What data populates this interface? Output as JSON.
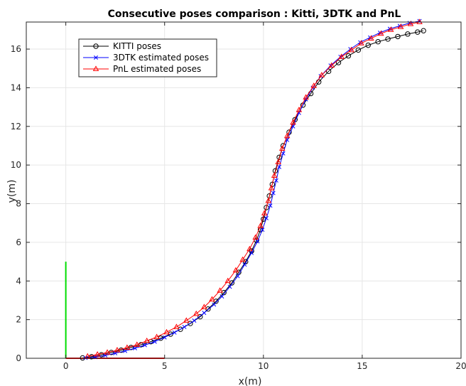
{
  "chart_data": {
    "type": "line",
    "title": "Consecutive poses comparison : Kitti, 3DTK and PnL",
    "xlabel": "x(m)",
    "ylabel": "y(m)",
    "xlim": [
      -2,
      20
    ],
    "ylim": [
      0,
      17.4
    ],
    "xticks": [
      0,
      5,
      10,
      15,
      20
    ],
    "yticks": [
      0,
      2,
      4,
      6,
      8,
      10,
      12,
      14,
      16
    ],
    "grid": true,
    "legend_position": "top-left",
    "series": [
      {
        "name": "KITTI poses",
        "color": "#000000",
        "marker": "circle",
        "points": [
          [
            0.85,
            0.02
          ],
          [
            1.3,
            0.08
          ],
          [
            1.8,
            0.18
          ],
          [
            2.3,
            0.3
          ],
          [
            2.8,
            0.42
          ],
          [
            3.3,
            0.56
          ],
          [
            3.8,
            0.7
          ],
          [
            4.3,
            0.86
          ],
          [
            4.8,
            1.04
          ],
          [
            5.3,
            1.25
          ],
          [
            5.8,
            1.5
          ],
          [
            6.3,
            1.8
          ],
          [
            6.8,
            2.15
          ],
          [
            7.2,
            2.55
          ],
          [
            7.6,
            2.95
          ],
          [
            8.0,
            3.4
          ],
          [
            8.4,
            3.9
          ],
          [
            8.75,
            4.45
          ],
          [
            9.1,
            5.0
          ],
          [
            9.4,
            5.55
          ],
          [
            9.65,
            6.1
          ],
          [
            9.85,
            6.65
          ],
          [
            10.0,
            7.2
          ],
          [
            10.15,
            7.8
          ],
          [
            10.3,
            8.4
          ],
          [
            10.45,
            9.0
          ],
          [
            10.6,
            9.7
          ],
          [
            10.8,
            10.4
          ],
          [
            11.0,
            11.0
          ],
          [
            11.3,
            11.7
          ],
          [
            11.6,
            12.35
          ],
          [
            12.0,
            13.1
          ],
          [
            12.4,
            13.7
          ],
          [
            12.8,
            14.3
          ],
          [
            13.3,
            14.85
          ],
          [
            13.8,
            15.3
          ],
          [
            14.3,
            15.65
          ],
          [
            14.8,
            15.95
          ],
          [
            15.3,
            16.2
          ],
          [
            15.8,
            16.38
          ],
          [
            16.3,
            16.52
          ],
          [
            16.8,
            16.65
          ],
          [
            17.3,
            16.78
          ],
          [
            17.8,
            16.88
          ],
          [
            18.1,
            16.95
          ]
        ]
      },
      {
        "name": "3DTK estimated poses",
        "color": "#0000ff",
        "marker": "x",
        "points": [
          [
            1.0,
            0.02
          ],
          [
            1.5,
            0.06
          ],
          [
            2.0,
            0.15
          ],
          [
            2.5,
            0.26
          ],
          [
            3.0,
            0.38
          ],
          [
            3.5,
            0.52
          ],
          [
            4.0,
            0.68
          ],
          [
            4.5,
            0.86
          ],
          [
            5.0,
            1.08
          ],
          [
            5.5,
            1.33
          ],
          [
            6.0,
            1.62
          ],
          [
            6.5,
            1.95
          ],
          [
            7.0,
            2.35
          ],
          [
            7.5,
            2.78
          ],
          [
            7.9,
            3.2
          ],
          [
            8.3,
            3.7
          ],
          [
            8.7,
            4.25
          ],
          [
            9.05,
            4.85
          ],
          [
            9.4,
            5.45
          ],
          [
            9.7,
            6.05
          ],
          [
            9.95,
            6.65
          ],
          [
            10.15,
            7.25
          ],
          [
            10.35,
            7.9
          ],
          [
            10.5,
            8.55
          ],
          [
            10.65,
            9.2
          ],
          [
            10.8,
            9.9
          ],
          [
            11.0,
            10.6
          ],
          [
            11.2,
            11.3
          ],
          [
            11.5,
            12.0
          ],
          [
            11.8,
            12.7
          ],
          [
            12.15,
            13.4
          ],
          [
            12.5,
            14.0
          ],
          [
            12.9,
            14.6
          ],
          [
            13.4,
            15.15
          ],
          [
            13.9,
            15.6
          ],
          [
            14.4,
            16.0
          ],
          [
            14.9,
            16.35
          ],
          [
            15.4,
            16.6
          ],
          [
            15.9,
            16.85
          ],
          [
            16.4,
            17.05
          ],
          [
            16.9,
            17.2
          ],
          [
            17.4,
            17.35
          ],
          [
            17.9,
            17.45
          ]
        ]
      },
      {
        "name": "PnL estimated poses",
        "color": "#ff0000",
        "marker": "triangle",
        "points": [
          [
            1.1,
            0.1
          ],
          [
            1.6,
            0.2
          ],
          [
            2.1,
            0.3
          ],
          [
            2.6,
            0.42
          ],
          [
            3.1,
            0.55
          ],
          [
            3.6,
            0.7
          ],
          [
            4.1,
            0.9
          ],
          [
            4.6,
            1.1
          ],
          [
            5.1,
            1.35
          ],
          [
            5.6,
            1.62
          ],
          [
            6.1,
            1.95
          ],
          [
            6.6,
            2.3
          ],
          [
            7.0,
            2.65
          ],
          [
            7.4,
            3.05
          ],
          [
            7.8,
            3.5
          ],
          [
            8.2,
            4.0
          ],
          [
            8.6,
            4.55
          ],
          [
            8.95,
            5.1
          ],
          [
            9.3,
            5.65
          ],
          [
            9.6,
            6.25
          ],
          [
            9.85,
            6.85
          ],
          [
            10.05,
            7.5
          ],
          [
            10.25,
            8.15
          ],
          [
            10.4,
            8.8
          ],
          [
            10.55,
            9.45
          ],
          [
            10.75,
            10.15
          ],
          [
            10.95,
            10.85
          ],
          [
            11.2,
            11.5
          ],
          [
            11.5,
            12.2
          ],
          [
            11.8,
            12.85
          ],
          [
            12.15,
            13.5
          ],
          [
            12.55,
            14.1
          ],
          [
            12.95,
            14.65
          ],
          [
            13.45,
            15.15
          ],
          [
            13.95,
            15.6
          ],
          [
            14.45,
            15.95
          ],
          [
            14.95,
            16.3
          ],
          [
            15.45,
            16.55
          ],
          [
            15.95,
            16.8
          ],
          [
            16.45,
            17.0
          ],
          [
            16.95,
            17.15
          ],
          [
            17.45,
            17.3
          ],
          [
            17.9,
            17.4
          ]
        ]
      }
    ],
    "reference_axes": [
      {
        "color": "#00dd00",
        "from": [
          0,
          0
        ],
        "to": [
          0,
          5
        ]
      },
      {
        "color": "#ff0000",
        "from": [
          0,
          0
        ],
        "to": [
          5,
          0
        ]
      }
    ]
  }
}
